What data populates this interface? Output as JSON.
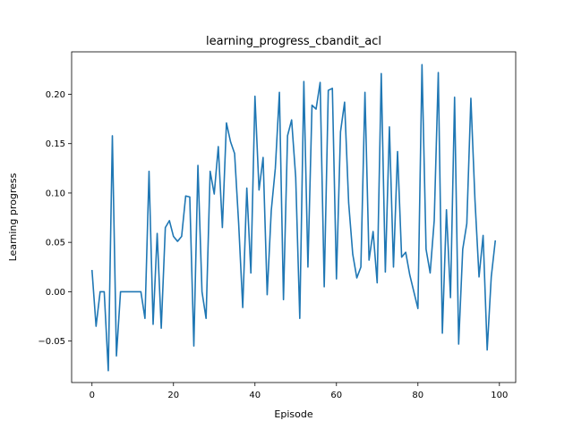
{
  "chart_data": {
    "type": "line",
    "title": "learning_progress_cbandit_acl",
    "xlabel": "Episode",
    "ylabel": "Learning progress",
    "xlim": [
      -5,
      104
    ],
    "ylim": [
      -0.092,
      0.243
    ],
    "xticks": [
      0,
      20,
      40,
      60,
      80,
      100
    ],
    "yticks": [
      -0.05,
      0.0,
      0.05,
      0.1,
      0.15,
      0.2
    ],
    "ytick_labels": [
      "−0.05",
      "0.00",
      "0.05",
      "0.10",
      "0.15",
      "0.20"
    ],
    "grid": false,
    "color": "#1f77b4",
    "series": [
      {
        "x": [
          0,
          1,
          2,
          3,
          4,
          5,
          6,
          7,
          8,
          9,
          10,
          11,
          12,
          13,
          14,
          15,
          16,
          17,
          18,
          19,
          20,
          21,
          22,
          23,
          24,
          25,
          26,
          27,
          28,
          29,
          30,
          31,
          32,
          33,
          34,
          35,
          36,
          37,
          38,
          39,
          40,
          41,
          42,
          43,
          44,
          45,
          46,
          47,
          48,
          49,
          50,
          51,
          52,
          53,
          54,
          55,
          56,
          57,
          58,
          59,
          60,
          61,
          62,
          63,
          64,
          65,
          66,
          67,
          68,
          69,
          70,
          71,
          72,
          73,
          74,
          75,
          76,
          77,
          78,
          79,
          80,
          81,
          82,
          83,
          84,
          85,
          86,
          87,
          88,
          89,
          90,
          91,
          92,
          93,
          94,
          95,
          96,
          97,
          98,
          99
        ],
        "values": [
          0.022,
          -0.035,
          0.0,
          0.0,
          -0.08,
          0.158,
          -0.065,
          0.0,
          0.0,
          0.0,
          0.0,
          0.0,
          0.0,
          -0.027,
          0.122,
          -0.033,
          0.059,
          -0.037,
          0.065,
          0.072,
          0.056,
          0.051,
          0.056,
          0.097,
          0.096,
          -0.055,
          0.128,
          0.0,
          -0.027,
          0.122,
          0.099,
          0.147,
          0.065,
          0.171,
          0.152,
          0.14,
          0.069,
          -0.016,
          0.105,
          0.019,
          0.198,
          0.103,
          0.136,
          -0.003,
          0.082,
          0.125,
          0.202,
          -0.008,
          0.158,
          0.174,
          0.116,
          -0.027,
          0.213,
          0.025,
          0.189,
          0.185,
          0.212,
          0.005,
          0.204,
          0.206,
          0.013,
          0.162,
          0.192,
          0.09,
          0.038,
          0.014,
          0.025,
          0.202,
          0.032,
          0.061,
          0.009,
          0.221,
          0.02,
          0.167,
          0.025,
          0.142,
          0.035,
          0.04,
          0.017,
          0.0,
          -0.017,
          0.23,
          0.043,
          0.019,
          0.072,
          0.222,
          -0.042,
          0.083,
          -0.006,
          0.197,
          -0.053,
          0.043,
          0.069,
          0.196,
          0.093,
          0.015,
          0.057,
          -0.059,
          0.015,
          0.052
        ]
      }
    ]
  }
}
